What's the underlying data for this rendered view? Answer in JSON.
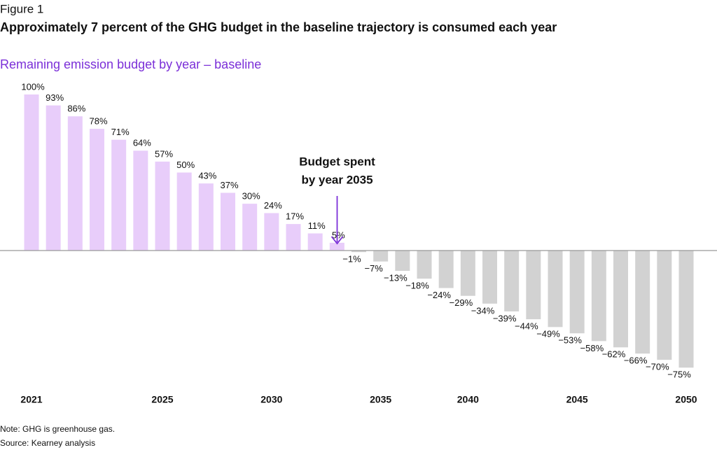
{
  "chart_data": {
    "type": "bar",
    "figure_label": "Figure 1",
    "title": "Approximately 7 percent of the GHG budget in the baseline trajectory is consumed each year",
    "subtitle": "Remaining emission budget by year – baseline",
    "annotation": [
      "Budget spent",
      "by year 2035"
    ],
    "categories": [
      "2021",
      null,
      null,
      null,
      null,
      null,
      "2025",
      null,
      null,
      null,
      null,
      "2030",
      null,
      null,
      null,
      null,
      "2035",
      null,
      null,
      null,
      "2040",
      null,
      null,
      null,
      null,
      "2045",
      null,
      null,
      null,
      null,
      "2050"
    ],
    "values": [
      100,
      93,
      86,
      78,
      71,
      64,
      57,
      50,
      43,
      37,
      30,
      24,
      17,
      11,
      5,
      -1,
      -7,
      -13,
      -18,
      -24,
      -29,
      -34,
      -39,
      -44,
      -49,
      -53,
      -58,
      -62,
      -66,
      -70,
      -75
    ],
    "value_labels": [
      "100%",
      "93%",
      "86%",
      "78%",
      "71%",
      "64%",
      "57%",
      "50%",
      "43%",
      "37%",
      "30%",
      "24%",
      "17%",
      "11%",
      "5%",
      "−1%",
      "−7%",
      "−13%",
      "−18%",
      "−24%",
      "−29%",
      "−34%",
      "−39%",
      "−44%",
      "−49%",
      "−53%",
      "−58%",
      "−62%",
      "−66%",
      "−70%",
      "−75%"
    ],
    "positive_color": "#e8cdfa",
    "negative_color": "#d2d2d2",
    "accent_color": "#7b2fd8",
    "ylim": [
      -85,
      110
    ],
    "notes": [
      "Note: GHG is greenhouse gas.",
      "Source: Kearney analysis"
    ]
  }
}
